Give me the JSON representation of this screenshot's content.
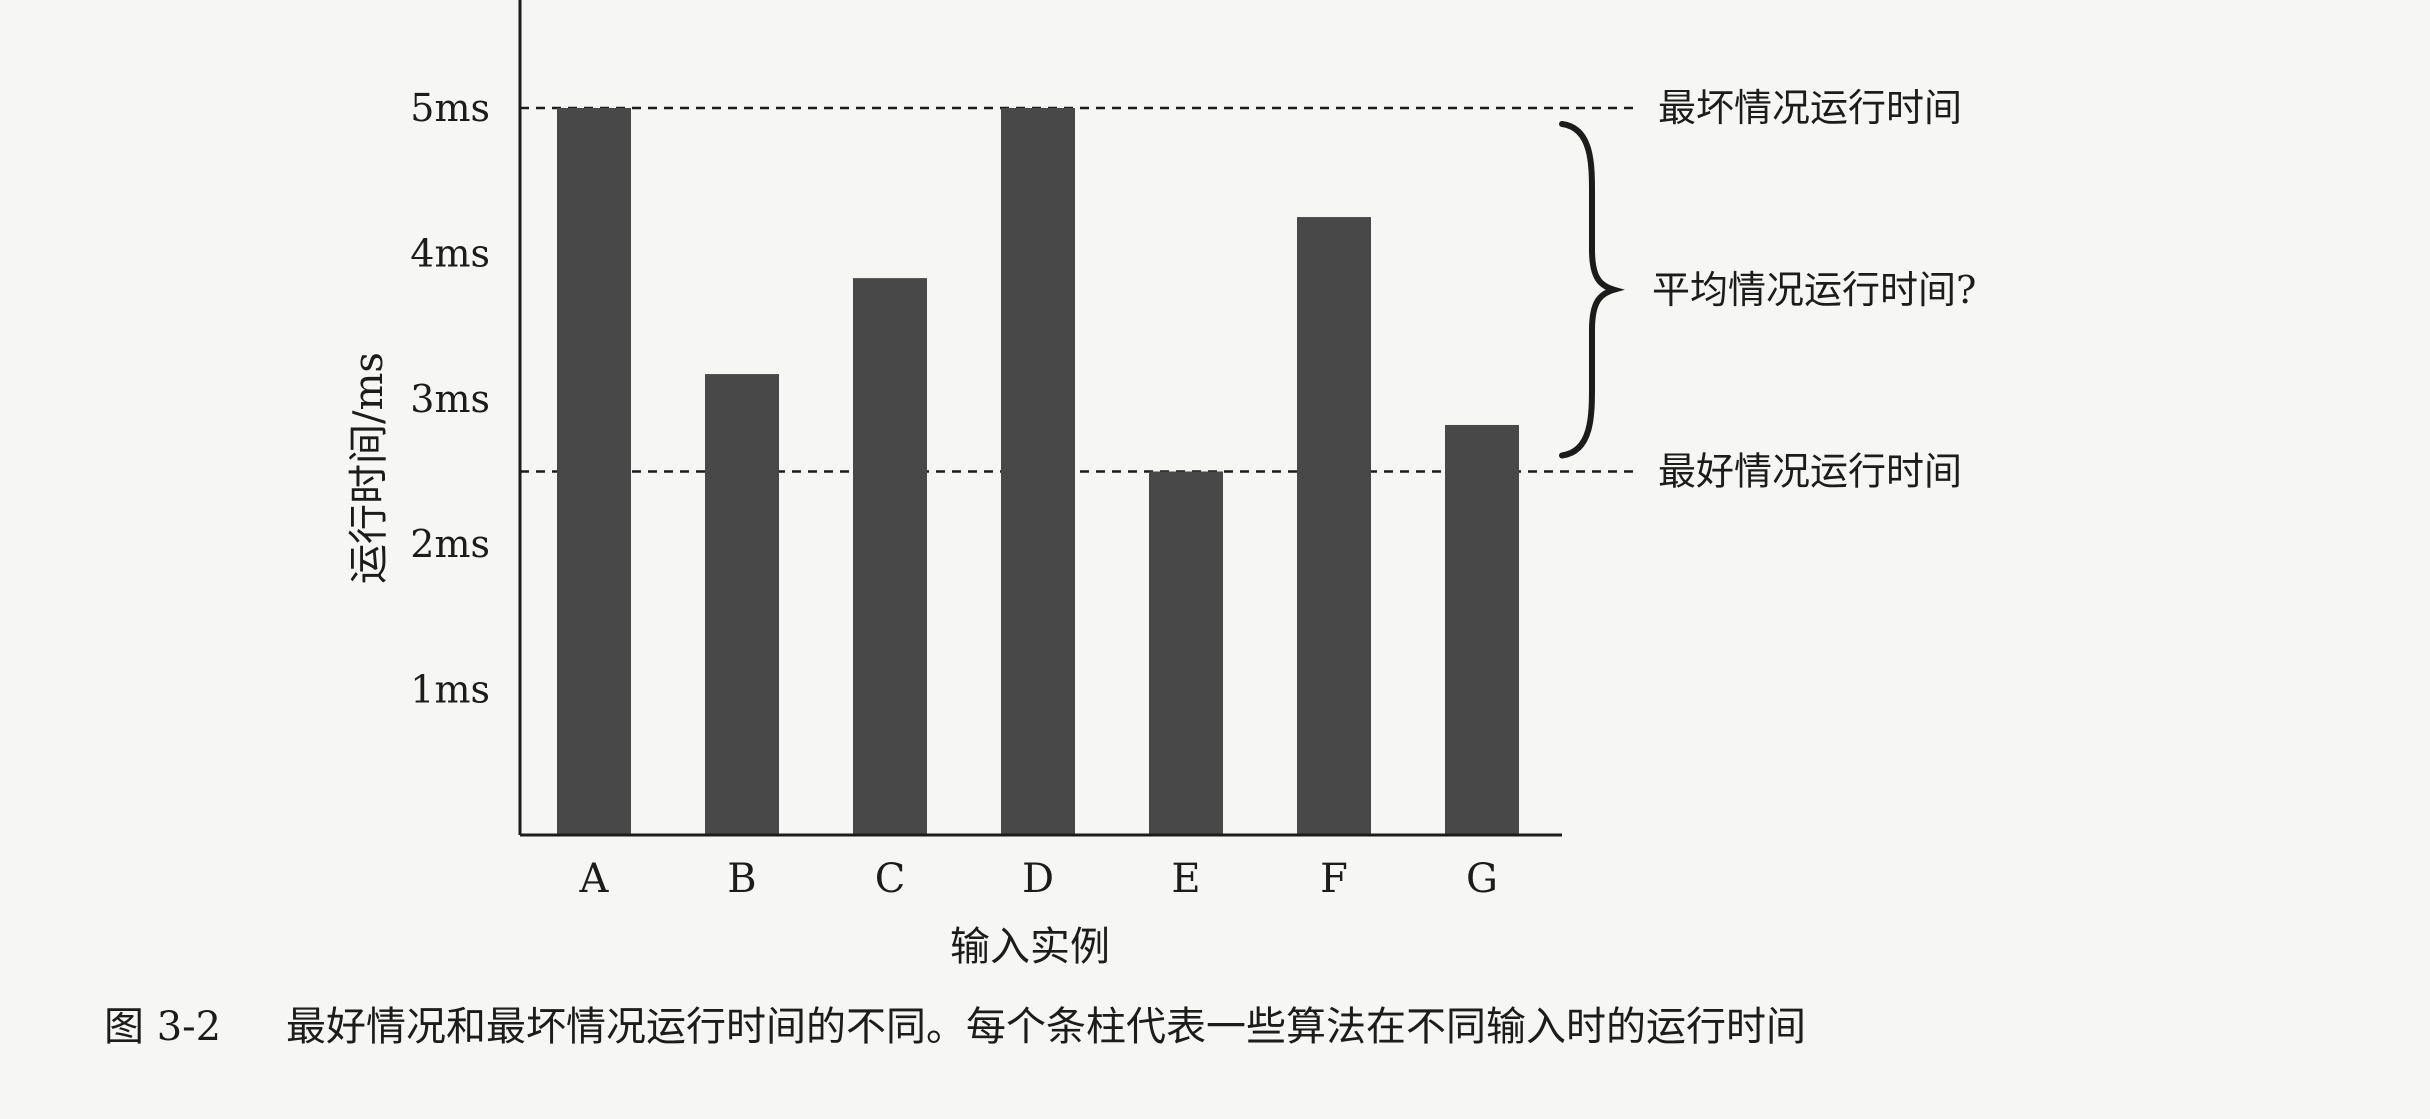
{
  "chart_data": {
    "type": "bar",
    "categories": [
      "A",
      "B",
      "C",
      "D",
      "E",
      "F",
      "G"
    ],
    "values": [
      5.0,
      3.17,
      3.83,
      5.0,
      2.5,
      4.25,
      2.82
    ],
    "ylabel": "运行时间/ms",
    "xlabel": "输入实例",
    "ylim": [
      0,
      5.7
    ],
    "yticks": [
      {
        "value": 1,
        "label": "1ms"
      },
      {
        "value": 2,
        "label": "2ms"
      },
      {
        "value": 3,
        "label": "3ms"
      },
      {
        "value": 4,
        "label": "4ms"
      },
      {
        "value": 5,
        "label": "5ms"
      }
    ],
    "bar_color": "#484848",
    "grid": false,
    "reference_lines": [
      {
        "value": 5.0,
        "label": "最坏情况运行时间",
        "style": "dashed"
      },
      {
        "value": 2.5,
        "label": "最好情况运行时间",
        "style": "dashed"
      }
    ],
    "brace": {
      "from": 2.5,
      "to": 5.0,
      "label": "平均情况运行时间?"
    }
  },
  "caption": {
    "number": "图 3-2",
    "text": "最好情况和最坏情况运行时间的不同。每个条柱代表一些算法在不同输入时的运行时间"
  }
}
